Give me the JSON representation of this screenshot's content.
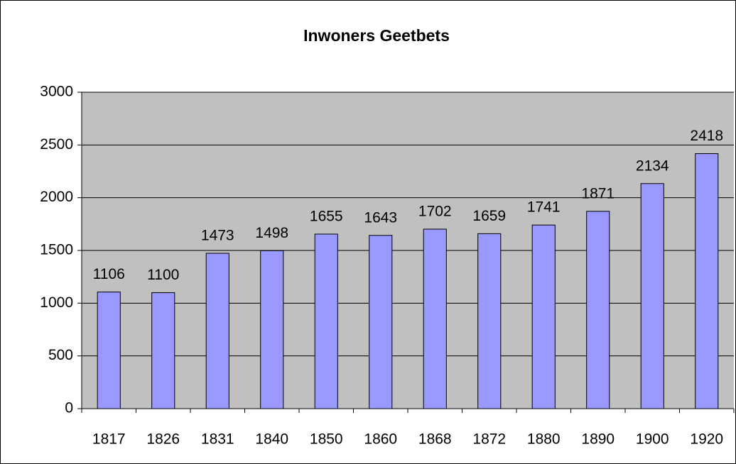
{
  "chart_data": {
    "type": "bar",
    "title": "Inwoners Geetbets",
    "categories": [
      "1817",
      "1826",
      "1831",
      "1840",
      "1850",
      "1860",
      "1868",
      "1872",
      "1880",
      "1890",
      "1900",
      "1920"
    ],
    "values": [
      1106,
      1100,
      1473,
      1498,
      1655,
      1643,
      1702,
      1659,
      1741,
      1871,
      2134,
      2418
    ],
    "color": "#9999ff",
    "plot_background": "#c0c0c0",
    "ylim": [
      0,
      3000
    ],
    "yticks": [
      0,
      500,
      1000,
      1500,
      2000,
      2500,
      3000
    ],
    "grid": true
  }
}
